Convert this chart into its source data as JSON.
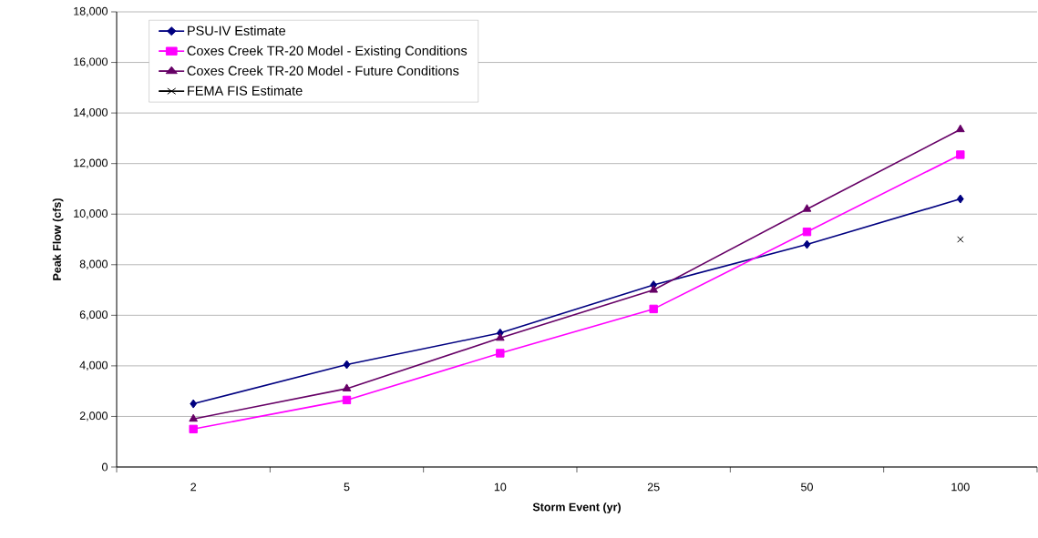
{
  "chart_data": {
    "type": "line",
    "xlabel": "Storm Event (yr)",
    "ylabel": "Peak Flow (cfs)",
    "categories": [
      "2",
      "5",
      "10",
      "25",
      "50",
      "100"
    ],
    "series": [
      {
        "name": "PSU-IV Estimate",
        "color": "#000080",
        "marker": "diamond",
        "values": [
          2500,
          4050,
          5300,
          7200,
          8800,
          10600
        ]
      },
      {
        "name": "Coxes Creek TR-20 Model -  Existing Conditions",
        "color": "#ff00ff",
        "marker": "square",
        "values": [
          1500,
          2650,
          4500,
          6250,
          9300,
          12350
        ]
      },
      {
        "name": "Coxes Creek TR-20 Model -  Future Conditions",
        "color": "#660066",
        "marker": "triangle",
        "values": [
          1900,
          3100,
          5100,
          7000,
          10200,
          13350
        ]
      },
      {
        "name": "FEMA FIS Estimate",
        "color": "#000000",
        "marker": "cross",
        "values": [
          null,
          null,
          null,
          null,
          null,
          9000
        ]
      }
    ],
    "ylim": [
      0,
      18000
    ],
    "yticks": [
      0,
      {
        "value": 2000,
        "label": "2,000"
      },
      {
        "value": 4000,
        "label": "4,000"
      },
      {
        "value": 6000,
        "label": "6,000"
      },
      {
        "value": 8000,
        "label": "8,000"
      },
      {
        "value": 10000,
        "label": "10,000"
      },
      {
        "value": 12000,
        "label": "12,000"
      },
      {
        "value": 14000,
        "label": "14,000"
      },
      {
        "value": 16000,
        "label": "16,000"
      },
      {
        "value": 18000,
        "label": "18,000"
      }
    ],
    "grid": "y",
    "legend": "top left",
    "line_style": "solid"
  }
}
